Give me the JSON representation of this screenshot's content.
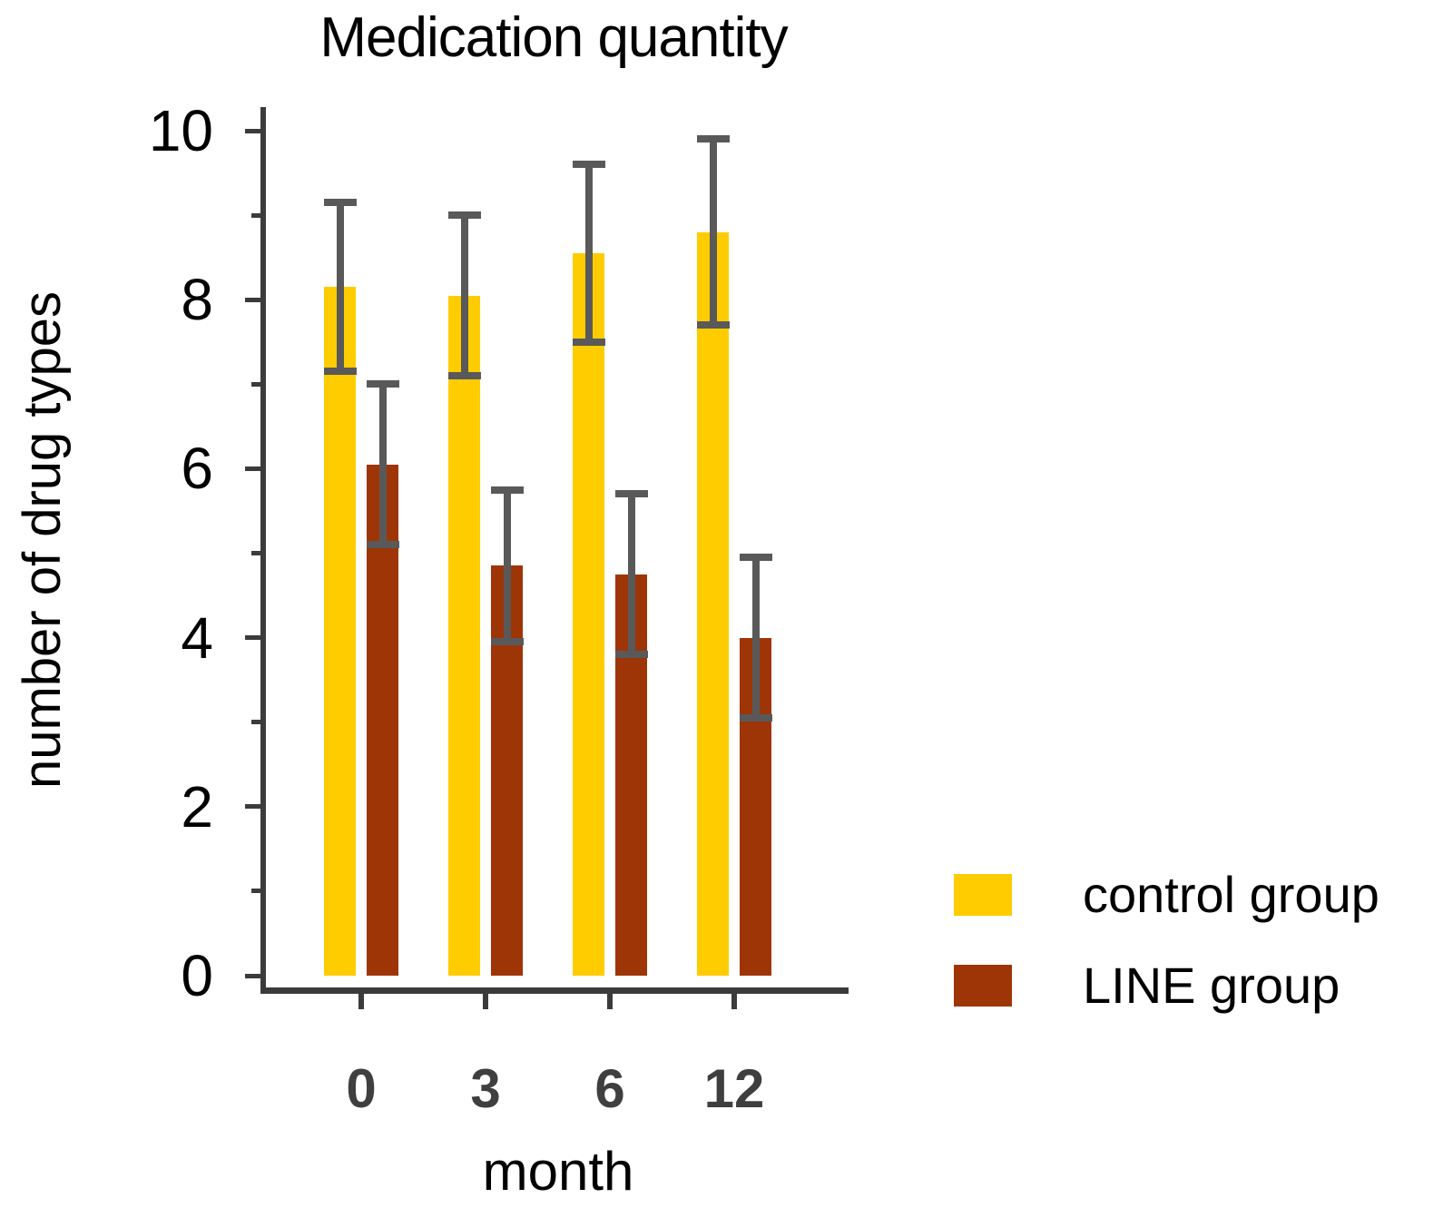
{
  "figure": {
    "title": "Medication quantity",
    "x_axis_label": "month",
    "y_axis_label": "number of drug types"
  },
  "chart_data": {
    "type": "bar",
    "title": "Medication quantity",
    "xlabel": "month",
    "ylabel": "number of drug types",
    "categories": [
      "0",
      "3",
      "6",
      "12"
    ],
    "series": [
      {
        "name": "control group",
        "color": "#FFCC00",
        "values": [
          8.15,
          8.05,
          8.55,
          8.8
        ],
        "errors": [
          1.0,
          0.95,
          1.05,
          1.1
        ]
      },
      {
        "name": "LINE group",
        "color": "#9E3506",
        "values": [
          6.05,
          4.85,
          4.75,
          4.0
        ],
        "errors": [
          0.95,
          0.9,
          0.95,
          0.95
        ]
      }
    ],
    "ylim": [
      0,
      10
    ],
    "yticks_major": [
      0,
      2,
      4,
      6,
      8,
      10
    ],
    "yticks_minor": [
      1,
      3,
      5,
      7,
      9
    ],
    "grid": false,
    "legend_position": "lower-right",
    "legend_entries": [
      "control group",
      "LINE group"
    ],
    "colors": {
      "axis": "#3B3B3B",
      "error_bar": "#595959",
      "x_tick_label": "#3F3F3F",
      "text": "#000000"
    }
  }
}
